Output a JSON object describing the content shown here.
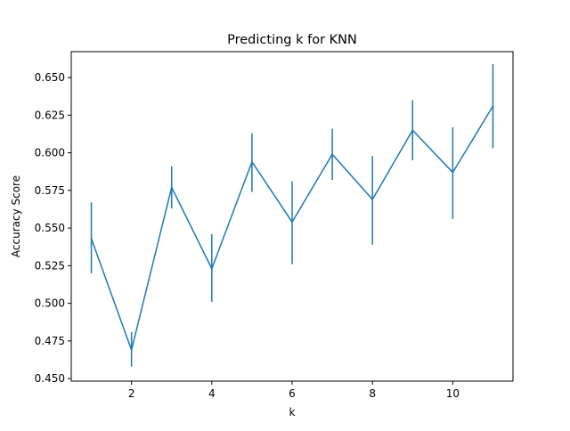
{
  "chart_data": {
    "type": "line",
    "title": "Predicting k for KNN",
    "xlabel": "k",
    "ylabel": "Accuracy Score",
    "x": [
      1,
      2,
      3,
      4,
      5,
      6,
      7,
      8,
      9,
      10,
      11
    ],
    "series": [
      {
        "values": [
          0.543,
          0.469,
          0.577,
          0.523,
          0.594,
          0.554,
          0.599,
          0.569,
          0.615,
          0.587,
          0.631
        ],
        "error_low": [
          0.52,
          0.458,
          0.563,
          0.501,
          0.574,
          0.526,
          0.582,
          0.539,
          0.595,
          0.556,
          0.603
        ],
        "error_high": [
          0.567,
          0.481,
          0.591,
          0.546,
          0.613,
          0.581,
          0.616,
          0.598,
          0.635,
          0.617,
          0.659
        ],
        "color": "#1f77b4"
      }
    ],
    "xlim": [
      0.5,
      11.5
    ],
    "ylim": [
      0.4483,
      0.6672
    ],
    "xticks": [
      2,
      4,
      6,
      8,
      10
    ],
    "xtick_labels": [
      "2",
      "4",
      "6",
      "8",
      "10"
    ],
    "yticks": [
      0.45,
      0.475,
      0.5,
      0.525,
      0.55,
      0.575,
      0.6,
      0.625,
      0.65
    ],
    "ytick_labels": [
      "0.450",
      "0.475",
      "0.500",
      "0.525",
      "0.550",
      "0.575",
      "0.600",
      "0.625",
      "0.650"
    ],
    "grid": false,
    "legend": "none"
  }
}
